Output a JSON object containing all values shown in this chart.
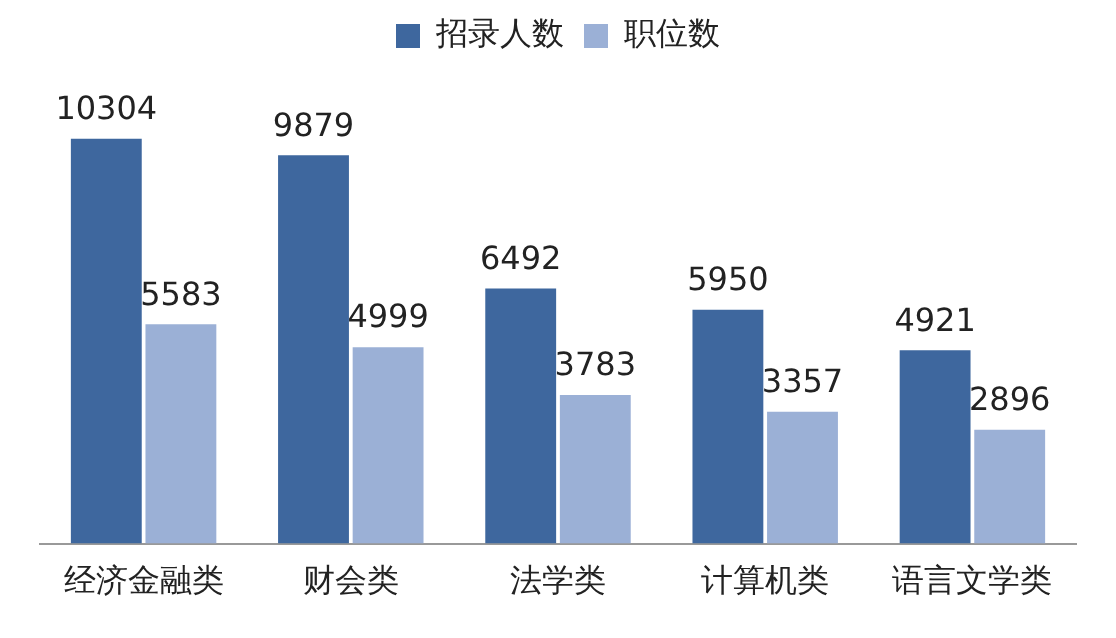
{
  "chart_data": {
    "type": "bar",
    "categories": [
      "经济金融类",
      "财会类",
      "法学类",
      "计算机类",
      "语言文学类"
    ],
    "series": [
      {
        "name": "招录人数",
        "color": "#3e679e",
        "values": [
          10304,
          9879,
          6492,
          5950,
          4921
        ]
      },
      {
        "name": "职位数",
        "color": "#9bb0d6",
        "values": [
          5583,
          4999,
          3783,
          3357,
          2896
        ]
      }
    ],
    "data_labels": true,
    "legend": "top",
    "grid": false
  }
}
